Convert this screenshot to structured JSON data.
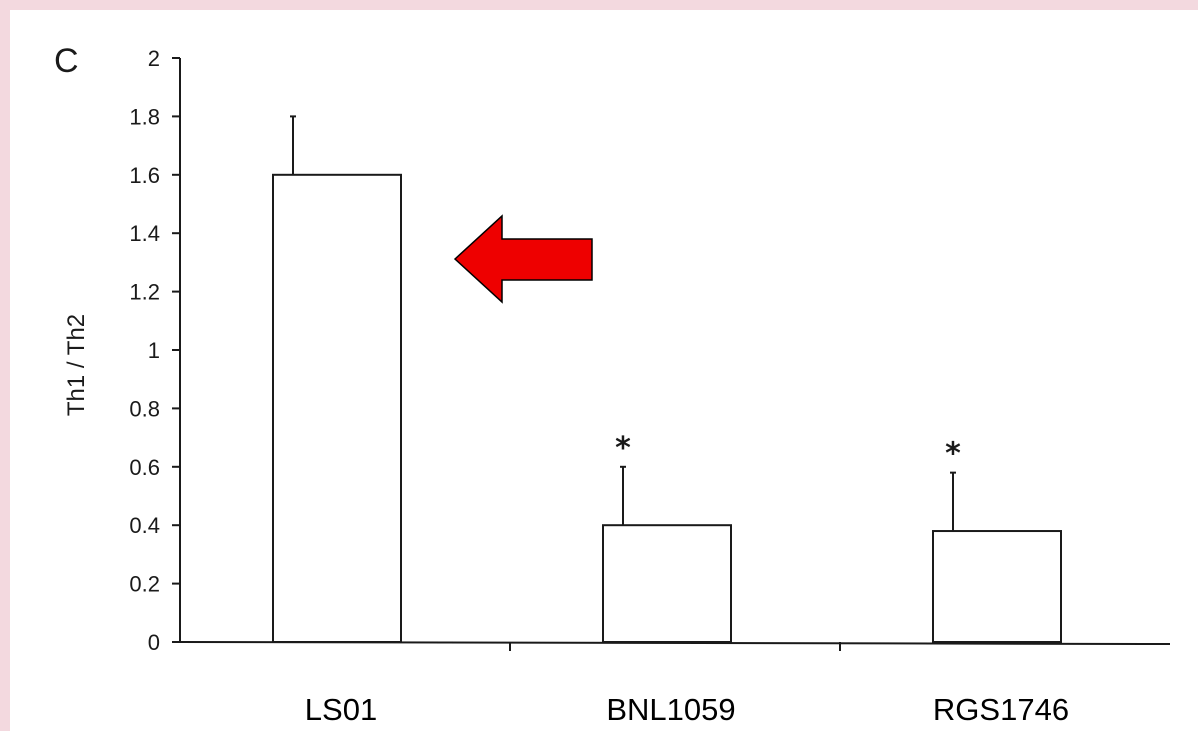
{
  "panel_label": "C",
  "colors": {
    "arrow": "#ee0000",
    "bar_fill": "#ffffff",
    "ink": "#1a1a1a"
  },
  "chart_data": {
    "type": "bar",
    "title": "",
    "xlabel": "",
    "ylabel": "Th1 / Th2",
    "ylim": [
      0,
      2
    ],
    "yticks": [
      "0",
      "0.2",
      "0.4",
      "0.6",
      "0.8",
      "1",
      "1.2",
      "1.4",
      "1.6",
      "1.8",
      "2"
    ],
    "categories": [
      "LS01",
      "BNL1059",
      "RGS1746"
    ],
    "values": [
      1.6,
      0.4,
      0.38
    ],
    "error_upper": [
      1.8,
      0.6,
      0.58
    ],
    "significance_marks": [
      "",
      "*",
      "*"
    ],
    "grid": false,
    "annotations": [
      {
        "type": "arrow",
        "points_to": "LS01",
        "color": "#ee0000"
      }
    ]
  }
}
